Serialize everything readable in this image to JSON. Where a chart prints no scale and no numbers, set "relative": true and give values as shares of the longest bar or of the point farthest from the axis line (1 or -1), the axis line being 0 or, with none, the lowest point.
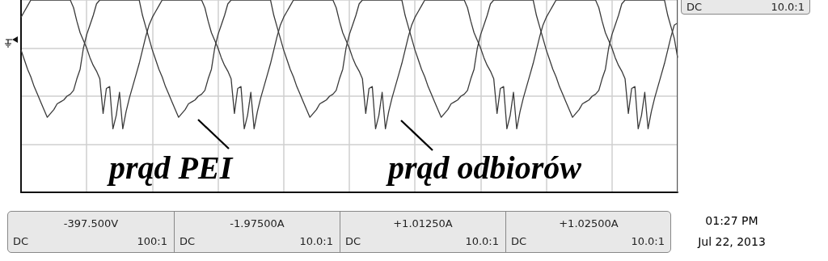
{
  "chart_data": {
    "type": "line",
    "relative": true,
    "grid": true,
    "marker": "none",
    "categories": [
      null,
      null,
      null,
      null,
      null,
      null,
      null,
      null,
      null,
      null,
      null,
      null,
      null,
      null,
      null,
      null,
      null,
      null,
      null,
      null,
      null,
      null,
      null,
      null,
      null,
      null,
      null,
      null,
      null,
      null,
      null,
      null,
      null,
      null,
      null,
      null,
      null,
      null,
      null,
      null,
      null,
      null,
      null,
      null,
      null,
      null,
      null,
      null,
      null,
      null,
      null,
      null,
      null,
      null,
      null,
      null,
      null,
      null,
      null,
      null,
      null,
      null,
      null,
      null,
      null,
      null,
      null,
      null,
      null,
      null,
      null,
      null,
      null,
      null,
      null,
      null,
      null,
      null,
      null,
      null,
      null,
      null,
      null,
      null,
      null,
      null,
      null,
      null,
      null,
      null,
      null,
      null,
      null,
      null,
      null,
      null,
      null,
      null,
      null,
      null,
      null,
      null,
      null,
      null,
      null,
      null,
      null,
      null,
      null,
      null,
      null,
      null,
      null,
      null,
      null,
      null,
      null,
      null,
      null,
      null,
      null,
      null,
      null,
      null,
      null,
      null,
      null,
      null,
      null,
      null,
      null,
      null,
      null,
      null,
      null,
      null,
      null,
      null,
      null,
      null,
      null,
      null,
      null,
      null,
      null,
      null,
      null,
      null,
      null,
      null,
      null,
      null,
      null,
      null,
      null,
      null,
      null,
      null,
      null,
      null,
      null,
      null,
      null,
      null,
      null,
      null,
      null,
      null,
      null,
      null,
      null,
      null,
      null,
      null,
      null,
      null,
      null,
      null,
      null,
      null,
      null,
      null,
      null,
      null,
      null,
      null,
      null,
      null,
      null,
      null,
      null,
      null,
      null,
      null,
      null,
      null,
      null,
      null,
      null,
      null,
      null
    ],
    "series": [
      {
        "color": "#3a3a3a",
        "values": [
          0.74,
          0.69,
          0.64,
          0.6,
          0.55,
          0.51,
          0.47,
          0.43,
          0.39,
          0.41,
          0.43,
          0.46,
          0.47,
          0.48,
          0.5,
          0.51,
          0.53,
          0.59,
          0.64,
          0.75,
          0.82,
          0.87,
          0.92,
          0.98,
          1,
          1,
          1,
          1,
          1,
          1,
          1,
          1,
          1,
          1,
          1,
          1,
          1,
          0.92,
          0.86,
          0.8,
          0.74,
          0.69,
          0.64,
          0.6,
          0.55,
          0.51,
          0.47,
          0.43,
          0.39,
          0.41,
          0.43,
          0.46,
          0.47,
          0.48,
          0.5,
          0.51,
          0.53,
          0.59,
          0.64,
          0.75,
          0.82,
          0.87,
          0.92,
          0.98,
          1,
          1,
          1,
          1,
          1,
          1,
          1,
          1,
          1,
          1,
          1,
          1,
          1,
          0.92,
          0.86,
          0.8,
          0.74,
          0.69,
          0.64,
          0.6,
          0.55,
          0.51,
          0.47,
          0.43,
          0.39,
          0.41,
          0.43,
          0.46,
          0.47,
          0.48,
          0.5,
          0.51,
          0.53,
          0.59,
          0.64,
          0.75,
          0.82,
          0.87,
          0.92,
          0.98,
          1,
          1,
          1,
          1,
          1,
          1,
          1,
          1,
          1,
          1,
          1,
          1,
          1,
          0.92,
          0.86,
          0.8,
          0.74,
          0.69,
          0.64,
          0.6,
          0.55,
          0.51,
          0.47,
          0.43,
          0.39,
          0.41,
          0.43,
          0.46,
          0.47,
          0.48,
          0.5,
          0.51,
          0.53,
          0.59,
          0.64,
          0.75,
          0.82,
          0.87,
          0.92,
          0.98,
          1,
          1,
          1,
          1,
          1,
          1,
          1,
          1,
          1,
          1,
          1,
          1,
          1,
          0.92,
          0.86,
          0.8,
          0.74,
          0.69,
          0.64,
          0.6,
          0.55,
          0.51,
          0.47,
          0.43,
          0.39,
          0.41,
          0.43,
          0.46,
          0.47,
          0.48,
          0.5,
          0.51,
          0.53,
          0.59,
          0.64,
          0.75,
          0.82,
          0.87,
          0.92,
          0.98,
          1,
          1,
          1,
          1,
          1,
          1,
          1,
          1,
          1,
          1,
          1,
          1,
          1,
          0.92,
          0.86,
          0.8,
          0.7
        ]
      },
      {
        "color": "#3a3a3a",
        "values": [
          0.91,
          0.94,
          0.97,
          1,
          1,
          1,
          1,
          1,
          1,
          1,
          1,
          1,
          1,
          1,
          1,
          1,
          0.96,
          0.89,
          0.83,
          0.79,
          0.75,
          0.7,
          0.66,
          0.63,
          0.59,
          0.41,
          0.54,
          0.55,
          0.33,
          0.4,
          0.52,
          0.33,
          0.42,
          0.49,
          0.55,
          0.61,
          0.67,
          0.74,
          0.81,
          0.87,
          0.91,
          0.94,
          0.97,
          1,
          1,
          1,
          1,
          1,
          1,
          1,
          1,
          1,
          1,
          1,
          1,
          1,
          0.96,
          0.89,
          0.83,
          0.79,
          0.75,
          0.7,
          0.66,
          0.63,
          0.59,
          0.41,
          0.54,
          0.55,
          0.33,
          0.4,
          0.52,
          0.33,
          0.42,
          0.49,
          0.55,
          0.61,
          0.67,
          0.74,
          0.81,
          0.87,
          0.91,
          0.94,
          0.97,
          1,
          1,
          1,
          1,
          1,
          1,
          1,
          1,
          1,
          1,
          1,
          1,
          1,
          0.96,
          0.89,
          0.83,
          0.79,
          0.75,
          0.7,
          0.66,
          0.63,
          0.59,
          0.41,
          0.54,
          0.55,
          0.33,
          0.4,
          0.52,
          0.33,
          0.42,
          0.49,
          0.55,
          0.61,
          0.67,
          0.74,
          0.81,
          0.87,
          0.91,
          0.94,
          0.97,
          1,
          1,
          1,
          1,
          1,
          1,
          1,
          1,
          1,
          1,
          1,
          1,
          1,
          0.96,
          0.89,
          0.83,
          0.79,
          0.75,
          0.7,
          0.66,
          0.63,
          0.59,
          0.41,
          0.54,
          0.55,
          0.33,
          0.4,
          0.52,
          0.33,
          0.42,
          0.49,
          0.55,
          0.61,
          0.67,
          0.74,
          0.81,
          0.87,
          0.91,
          0.94,
          0.97,
          1,
          1,
          1,
          1,
          1,
          1,
          1,
          1,
          1,
          1,
          1,
          1,
          1,
          0.96,
          0.89,
          0.83,
          0.79,
          0.75,
          0.7,
          0.66,
          0.63,
          0.59,
          0.41,
          0.54,
          0.55,
          0.33,
          0.4,
          0.52,
          0.33,
          0.42,
          0.49,
          0.55,
          0.61,
          0.67,
          0.74,
          0.81,
          0.87,
          0.88
        ]
      }
    ],
    "annotations": [
      "prąd PEI",
      "prąd odbiorów",
      "DC",
      "10.0:1",
      "-397.500V",
      "DC",
      "100:1",
      "-1.97500A",
      "DC",
      "10.0:1",
      "+1.01250A",
      "DC",
      "10.0:1",
      "+1.02500A",
      "DC",
      "10.0:1",
      "01:27 PM",
      "Jul 22, 2013"
    ]
  }
}
